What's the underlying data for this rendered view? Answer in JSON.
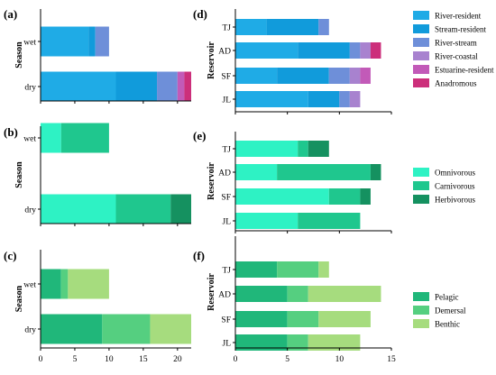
{
  "colors": {
    "River-resident": "#1fabe6",
    "Stream-resident": "#119bdb",
    "River-stream": "#6e8fd9",
    "River-coastal": "#a882cf",
    "Estuarine-resident": "#c25ab8",
    "Anadromous": "#cc2f7b",
    "Omnivorous": "#2ef2c4",
    "Carnivorous": "#1fc78e",
    "Herbivorous": "#159160",
    "Pelagic": "#20b77a",
    "Demersal": "#55cf80",
    "Benthic": "#a6dc7e"
  },
  "chart_data": [
    {
      "id": "a",
      "panel_label": "(a)",
      "type": "bar",
      "orientation": "horizontal",
      "stacked": true,
      "categories": [
        "wet",
        "dry"
      ],
      "ylabel": "Season",
      "xlim": [
        0,
        22
      ],
      "series": [
        {
          "name": "River-resident",
          "values": [
            7,
            11
          ]
        },
        {
          "name": "Stream-resident",
          "values": [
            1,
            6
          ]
        },
        {
          "name": "River-stream",
          "values": [
            2,
            3
          ]
        },
        {
          "name": "River-coastal",
          "values": [
            0,
            0
          ]
        },
        {
          "name": "Estuarine-resident",
          "values": [
            0,
            1
          ]
        },
        {
          "name": "Anadromous",
          "values": [
            0,
            1
          ]
        }
      ]
    },
    {
      "id": "b",
      "panel_label": "(b)",
      "type": "bar",
      "orientation": "horizontal",
      "stacked": true,
      "categories": [
        "wet",
        "dry"
      ],
      "ylabel": "Season",
      "xlim": [
        0,
        22
      ],
      "series": [
        {
          "name": "Omnivorous",
          "values": [
            3,
            11
          ]
        },
        {
          "name": "Carnivorous",
          "values": [
            7,
            8
          ]
        },
        {
          "name": "Herbivorous",
          "values": [
            0,
            3
          ]
        }
      ]
    },
    {
      "id": "c",
      "panel_label": "(c)",
      "type": "bar",
      "orientation": "horizontal",
      "stacked": true,
      "categories": [
        "wet",
        "dry"
      ],
      "ylabel": "Season",
      "xlim": [
        0,
        22
      ],
      "xticks": [
        "0",
        "5",
        "10",
        "15",
        "20"
      ],
      "series": [
        {
          "name": "Pelagic",
          "values": [
            3,
            9
          ]
        },
        {
          "name": "Demersal",
          "values": [
            1,
            7
          ]
        },
        {
          "name": "Benthic",
          "values": [
            6,
            6
          ]
        }
      ]
    },
    {
      "id": "d",
      "panel_label": "(d)",
      "type": "bar",
      "orientation": "horizontal",
      "stacked": true,
      "categories": [
        "TJ",
        "AD",
        "SF",
        "JL"
      ],
      "ylabel": "Reservoir",
      "xlim": [
        0,
        15
      ],
      "series": [
        {
          "name": "River-resident",
          "values": [
            3,
            6,
            4,
            7
          ]
        },
        {
          "name": "Stream-resident",
          "values": [
            5,
            5,
            5,
            3
          ]
        },
        {
          "name": "River-stream",
          "values": [
            1,
            1,
            2,
            1
          ]
        },
        {
          "name": "River-coastal",
          "values": [
            0,
            1,
            1,
            1
          ]
        },
        {
          "name": "Estuarine-resident",
          "values": [
            0,
            0,
            1,
            0
          ]
        },
        {
          "name": "Anadromous",
          "values": [
            0,
            1,
            0,
            0
          ]
        }
      ],
      "legend": [
        "River-resident",
        "Stream-resident",
        "River-stream",
        "River-coastal",
        "Estuarine-resident",
        "Anadromous"
      ]
    },
    {
      "id": "e",
      "panel_label": "(e)",
      "type": "bar",
      "orientation": "horizontal",
      "stacked": true,
      "categories": [
        "TJ",
        "AD",
        "SF",
        "JL"
      ],
      "ylabel": "Reservoir",
      "xlim": [
        0,
        15
      ],
      "series": [
        {
          "name": "Omnivorous",
          "values": [
            6,
            4,
            9,
            6
          ]
        },
        {
          "name": "Carnivorous",
          "values": [
            1,
            9,
            3,
            6
          ]
        },
        {
          "name": "Herbivorous",
          "values": [
            2,
            1,
            1,
            0
          ]
        }
      ],
      "legend": [
        "Omnivorous",
        "Carnivorous",
        "Herbivorous"
      ]
    },
    {
      "id": "f",
      "panel_label": "(f)",
      "type": "bar",
      "orientation": "horizontal",
      "stacked": true,
      "categories": [
        "TJ",
        "AD",
        "SF",
        "JL"
      ],
      "ylabel": "Reservoir",
      "xlim": [
        0,
        15
      ],
      "xticks": [
        "0",
        "5",
        "10",
        "15"
      ],
      "series": [
        {
          "name": "Pelagic",
          "values": [
            4,
            5,
            5,
            5
          ]
        },
        {
          "name": "Demersal",
          "values": [
            4,
            2,
            3,
            2
          ]
        },
        {
          "name": "Benthic",
          "values": [
            1,
            7,
            5,
            5
          ]
        }
      ],
      "legend": [
        "Pelagic",
        "Demersal",
        "Benthic"
      ]
    }
  ]
}
